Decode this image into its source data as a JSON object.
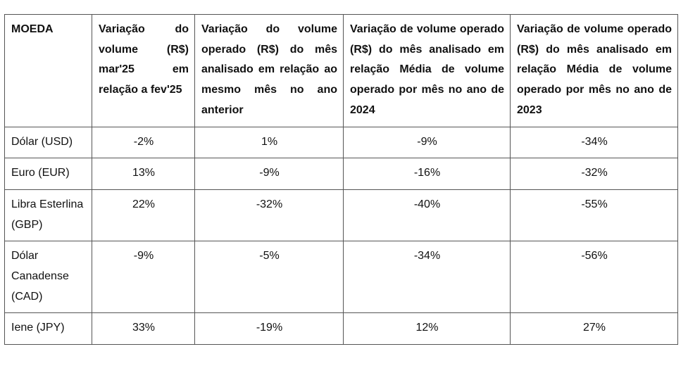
{
  "table": {
    "header": [
      "MOEDA",
      "Variação do volume (R$) mar'25 em relação a fev'25",
      "Variação do volume operado (R$) do mês analisado em relação ao mesmo mês no ano anterior",
      "Variação de volume operado (R$) do mês analisado em relação Média de volume operado por mês no ano de 2024",
      "Variação de volume operado (R$) do mês analisado em relação Média de volume operado por mês no ano de 2023"
    ],
    "rows": [
      [
        "Dólar (USD)",
        "-2%",
        "1%",
        "-9%",
        "-34%"
      ],
      [
        "Euro (EUR)",
        "13%",
        "-9%",
        "-16%",
        "-32%"
      ],
      [
        "Libra Esterlina (GBP)",
        "22%",
        "-32%",
        "-40%",
        "-55%"
      ],
      [
        "Dólar Canadense (CAD)",
        "-9%",
        "-5%",
        "-34%",
        "-56%"
      ],
      [
        "Iene (JPY)",
        "33%",
        "-19%",
        "12%",
        "27%"
      ]
    ]
  }
}
